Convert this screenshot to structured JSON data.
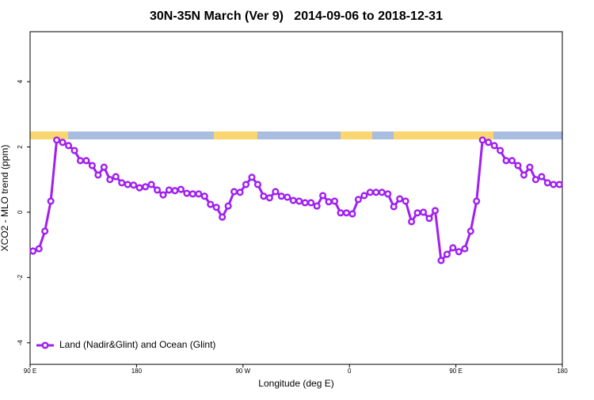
{
  "chart_data": {
    "type": "line",
    "title": "30N-35N March (Ver 9)   2014-09-06 to 2018-12-31",
    "x_label": "Longitude (deg E)",
    "y_label": "XCO2 - MLO trend (ppm)",
    "x": [
      92.5,
      97.5,
      102.5,
      107.5,
      112.5,
      117.5,
      122.5,
      127.5,
      132.5,
      137.5,
      142.5,
      147.5,
      152.5,
      157.5,
      162.5,
      167.5,
      172.5,
      177.5,
      182.5,
      187.5,
      192.5,
      197.5,
      202.5,
      207.5,
      212.5,
      217.5,
      222.5,
      227.5,
      232.5,
      237.5,
      242.5,
      247.5,
      252.5,
      257.5,
      262.5,
      267.5,
      272.5,
      277.5,
      282.5,
      287.5,
      292.5,
      297.5,
      302.5,
      307.5,
      312.5,
      317.5,
      322.5,
      327.5,
      332.5,
      337.5,
      342.5,
      347.5,
      352.5,
      357.5,
      362.5,
      367.5,
      372.5,
      377.5,
      382.5,
      387.5,
      392.5,
      397.5,
      402.5,
      407.5,
      412.5,
      417.5,
      422.5,
      427.5,
      432.5,
      437.5,
      442.5,
      447.5,
      452.5,
      457.5,
      462.5,
      467.5,
      472.5,
      477.5,
      482.5,
      487.5,
      492.5,
      497.5,
      502.5,
      507.5,
      512.5,
      517.5,
      522.5,
      527.5,
      532.5,
      537.5
    ],
    "series": [
      {
        "name": "Land (Nadir&Glint) and Ocean (Glint)",
        "color": "#a020f0",
        "values": [
          -1.19,
          -1.12,
          -0.58,
          0.34,
          2.21,
          2.14,
          2.04,
          1.89,
          1.58,
          1.58,
          1.43,
          1.14,
          1.38,
          1.0,
          1.09,
          0.9,
          0.85,
          0.83,
          0.75,
          0.78,
          0.85,
          0.68,
          0.53,
          0.68,
          0.66,
          0.7,
          0.58,
          0.56,
          0.56,
          0.49,
          0.24,
          0.15,
          -0.15,
          0.19,
          0.63,
          0.61,
          0.85,
          1.07,
          0.85,
          0.49,
          0.44,
          0.63,
          0.49,
          0.46,
          0.36,
          0.34,
          0.29,
          0.29,
          0.19,
          0.51,
          0.32,
          0.34,
          -0.02,
          -0.02,
          -0.05,
          0.39,
          0.51,
          0.61,
          0.61,
          0.61,
          0.56,
          0.17,
          0.41,
          0.34,
          -0.29,
          -0.02,
          0,
          -0.19,
          0.05,
          -1.48,
          -1.29,
          -1.09,
          -1.21,
          -1.12,
          -0.58,
          0.34,
          2.21,
          2.14,
          2.04,
          1.89,
          1.58,
          1.58,
          1.43,
          1.14,
          1.38,
          1.0,
          1.09,
          0.9,
          0.85,
          0.85
        ]
      }
    ],
    "xlim": [
      90,
      540
    ],
    "xticks": [
      {
        "value": 90,
        "label": "90 E"
      },
      180,
      {
        "value": 270,
        "label": "90 W"
      },
      {
        "value": 360,
        "label": "0"
      },
      {
        "value": 450,
        "label": "90 E"
      },
      {
        "value": 540,
        "label": "180"
      }
    ],
    "ylim": [
      -4.66,
      5.53
    ],
    "yticks": [
      -4,
      -2,
      0,
      2,
      4
    ],
    "legend": "bottom-left"
  }
}
